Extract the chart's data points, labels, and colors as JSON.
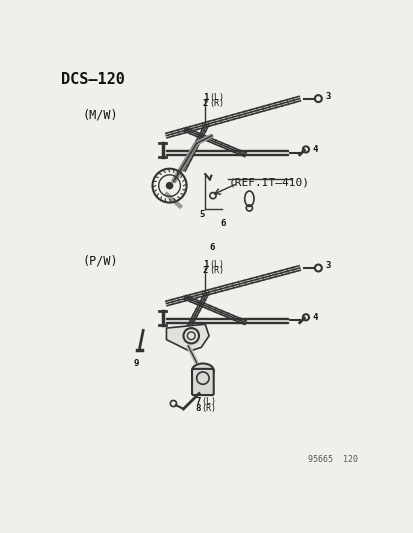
{
  "title": "DCS–120",
  "bg_color": "#f0f0eb",
  "text_color": "#111111",
  "line_color": "#222222",
  "diagram_color": "#333333",
  "footer": "95665  120",
  "mw_label": "(M/W)",
  "pw_label": "(P/W)",
  "ref_label": "(REF.IT–410)",
  "parts": {
    "mw": {
      "l3": "3",
      "l4": "4",
      "l5": "5",
      "l6": "6"
    },
    "pw": {
      "l3": "3",
      "l4": "4",
      "l7": "7",
      "l8": "8",
      "l9": "9"
    }
  }
}
